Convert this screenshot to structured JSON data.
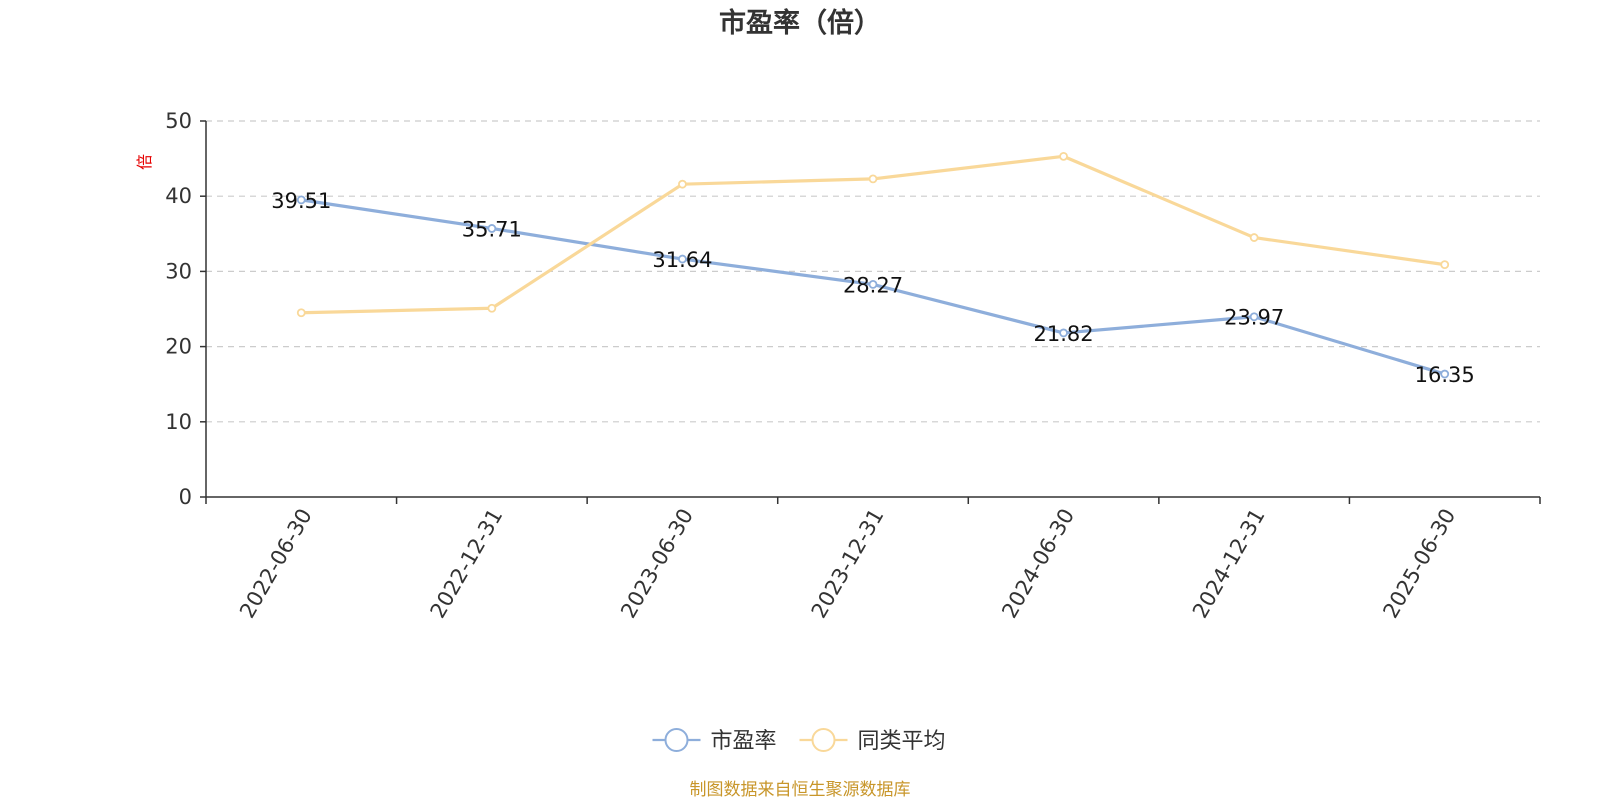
{
  "chart_data": {
    "type": "line",
    "title": "市盈率（倍）",
    "ylabel": "倍",
    "ylim": [
      0,
      50
    ],
    "yticks": [
      0,
      10,
      20,
      30,
      40,
      50
    ],
    "grid": true,
    "legend_position": "bottom",
    "categories": [
      "2022-06-30",
      "2022-12-31",
      "2023-06-30",
      "2023-12-31",
      "2024-06-30",
      "2024-12-31",
      "2025-06-30"
    ],
    "series": [
      {
        "name": "市盈率",
        "color": "#8eaedb",
        "show_labels": true,
        "values": [
          39.51,
          35.71,
          31.64,
          28.27,
          21.82,
          23.97,
          16.35
        ]
      },
      {
        "name": "同类平均",
        "color": "#f9d899",
        "show_labels": false,
        "values": [
          24.5,
          25.1,
          41.6,
          42.3,
          45.3,
          34.5,
          30.9
        ]
      }
    ],
    "source": "制图数据来自恒生聚源数据库"
  }
}
